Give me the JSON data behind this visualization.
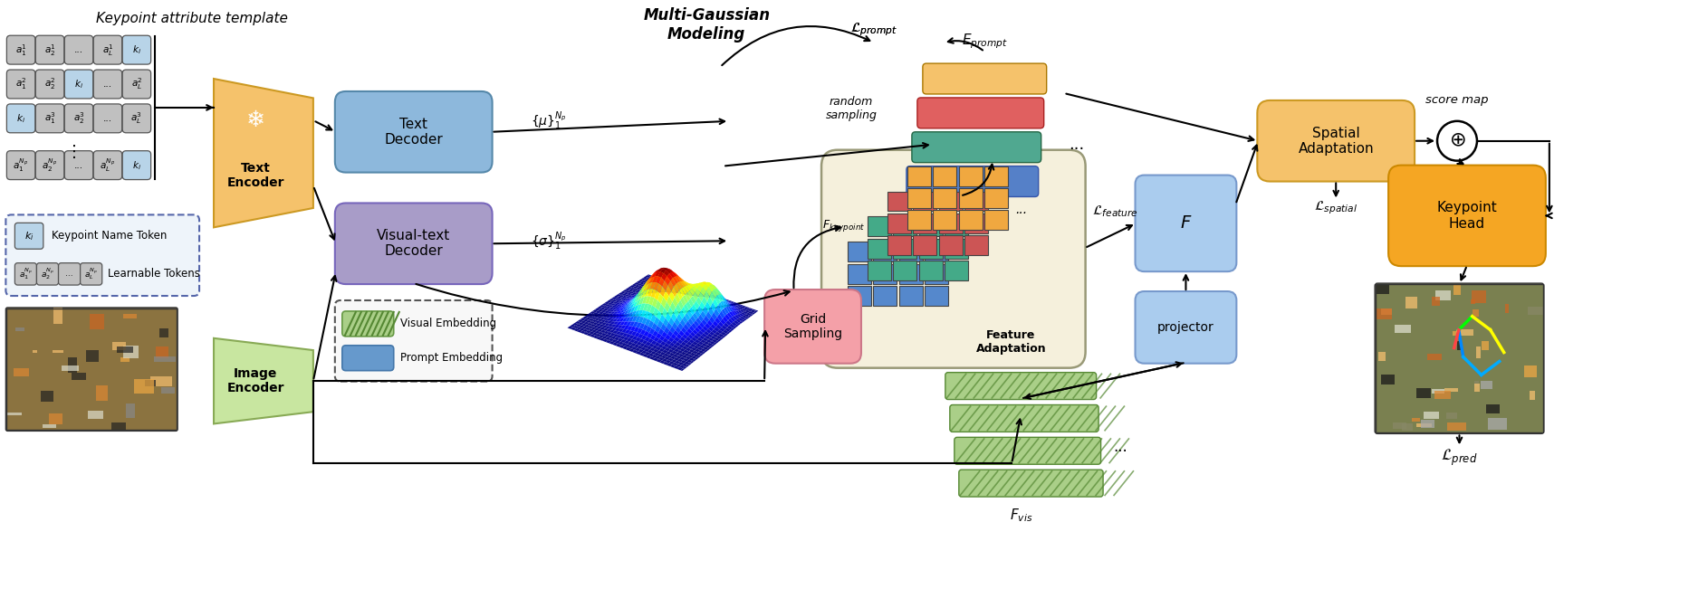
{
  "bg_color": "#ffffff",
  "keypoint_attr_title": "Keypoint attribute template",
  "text_encoder_label": "Text\nEncoder",
  "text_decoder_label": "Text\nDecoder",
  "visual_text_decoder_label": "Visual-text\nDecoder",
  "image_encoder_label": "Image\nEncoder",
  "multi_gaussian_label": "Multi-Gaussian\nModeling",
  "spatial_adaptation_label": "Spatial\nAdaptation",
  "feature_adaptation_label": "Feature\nAdaptation",
  "keypoint_head_label": "Keypoint\nHead",
  "grid_sampling_label": "Grid\nSampling",
  "projector_label": "projector",
  "score_map_label": "score map",
  "colors": {
    "orange_encoder": "#F5C26B",
    "green_encoder": "#C8E6A0",
    "blue_decoder": "#8DB8DC",
    "purple_decoder": "#A89CC8",
    "spatial_orange": "#F5C26B",
    "keypoint_orange": "#F5A623",
    "grid_pink": "#F4A0A8",
    "projector_blue": "#AACCEE",
    "F_blue": "#AACCEE",
    "beige_bg": "#F5F0DC",
    "light_blue_cell": "#B8D4E8",
    "gray_cell": "#C0C0C0",
    "stack_orange": "#F5C26B",
    "stack_red": "#E06060",
    "stack_teal": "#50A890",
    "stack_blue": "#5580C8",
    "fvis_green": "#88C878",
    "green_hatch": "#88C060",
    "blue_prompt": "#6699CC"
  },
  "layout": {
    "fig_w": 18.75,
    "fig_h": 6.61,
    "dpi": 100
  }
}
